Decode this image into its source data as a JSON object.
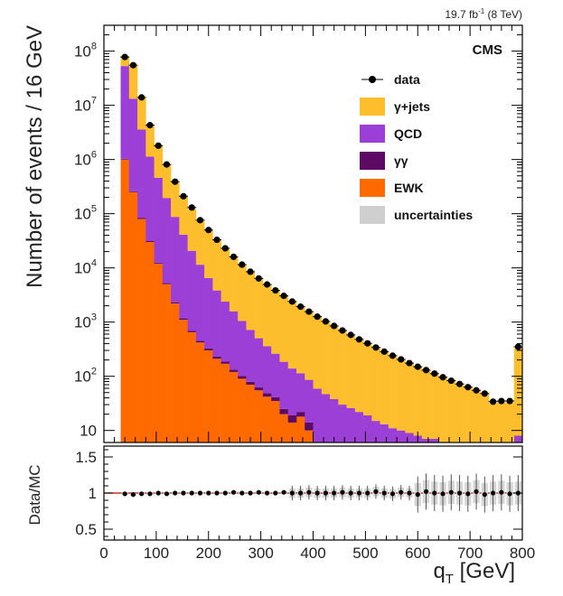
{
  "chart_data": {
    "type": "histogram-stacked",
    "lumi_label": "19.7 fb",
    "lumi_sup": "-1",
    "lumi_energy": "(8 TeV)",
    "experiment_label": "CMS",
    "ylabel": "Number of events / 16 GeV",
    "xlabel_main": "q",
    "xlabel_sub": "T",
    "xlabel_unit": " [GeV]",
    "ratio_ylabel": "Data/MC",
    "xlim": [
      0,
      800
    ],
    "bin_width": 16,
    "ylim_log": [
      6,
      300000000
    ],
    "ratio_ylim": [
      0.35,
      1.65
    ],
    "x_ticks": [
      "0",
      "100",
      "200",
      "300",
      "400",
      "500",
      "600",
      "700",
      "800"
    ],
    "y_ticks": [
      {
        "value": 10,
        "base": "10",
        "exp": ""
      },
      {
        "value": 100,
        "base": "10",
        "exp": "2"
      },
      {
        "value": 1000,
        "base": "10",
        "exp": "3"
      },
      {
        "value": 10000,
        "base": "10",
        "exp": "4"
      },
      {
        "value": 100000,
        "base": "10",
        "exp": "5"
      },
      {
        "value": 1000000,
        "base": "10",
        "exp": "6"
      },
      {
        "value": 10000000,
        "base": "10",
        "exp": "7"
      },
      {
        "value": 100000000,
        "base": "10",
        "exp": "8"
      }
    ],
    "ratio_ticks": [
      {
        "value": 0.5,
        "label": "0.5"
      },
      {
        "value": 1.0,
        "label": "1"
      },
      {
        "value": 1.5,
        "label": "1.5"
      }
    ],
    "legend": [
      {
        "key": "data",
        "label": "data",
        "type": "marker",
        "color": "#000000"
      },
      {
        "key": "gjets",
        "label": "γ+jets",
        "type": "fill",
        "color": "#fdbe2e"
      },
      {
        "key": "qcd",
        "label": "QCD",
        "type": "fill",
        "color": "#9b3fd6"
      },
      {
        "key": "gg",
        "label": "γγ",
        "type": "fill",
        "color": "#5c0a63"
      },
      {
        "key": "ewk",
        "label": "EWK",
        "type": "fill",
        "color": "#ff6a00"
      },
      {
        "key": "unc",
        "label": "uncertainties",
        "type": "fill",
        "color": "#cfcfcf"
      }
    ],
    "bins_low_edges": [
      32,
      48,
      64,
      80,
      96,
      112,
      128,
      144,
      160,
      176,
      192,
      208,
      224,
      240,
      256,
      272,
      288,
      304,
      320,
      336,
      352,
      368,
      384,
      400,
      416,
      432,
      448,
      464,
      480,
      496,
      512,
      528,
      544,
      560,
      576,
      592,
      608,
      624,
      640,
      656,
      672,
      688,
      704,
      720,
      736,
      752,
      768,
      784
    ],
    "series": [
      {
        "name": "EWK",
        "key": "ewk",
        "color": "#ff6a00",
        "values": [
          1000000.0,
          250000.0,
          80000.0,
          30000.0,
          12000.0,
          5000,
          2200,
          1100,
          650,
          420,
          300,
          210,
          170,
          120,
          90,
          70,
          55,
          42,
          35,
          20,
          14,
          18,
          10,
          0,
          0,
          0,
          0,
          0,
          0,
          0,
          0,
          0,
          0,
          0,
          0,
          0,
          0,
          0,
          0,
          0,
          0,
          0,
          0,
          0,
          0,
          0,
          0,
          0
        ]
      },
      {
        "name": "γγ",
        "key": "gg",
        "color": "#5c0a63",
        "values": [
          30000.0,
          9000,
          3000,
          1200,
          500,
          230,
          120,
          70,
          45,
          33,
          25,
          20,
          16,
          13,
          11,
          9,
          8,
          7,
          6,
          5,
          5,
          4,
          4,
          3,
          3,
          3,
          2,
          2,
          2,
          2,
          1,
          1,
          1,
          1,
          1,
          1,
          1,
          1,
          1,
          1,
          0,
          0,
          0,
          0,
          0,
          0,
          0,
          0
        ]
      },
      {
        "name": "QCD",
        "key": "qcd",
        "color": "#9b3fd6",
        "values": [
          52000000.0,
          13000000.0,
          3500000.0,
          1100000.0,
          450000.0,
          190000.0,
          85000.0,
          40000.0,
          20000.0,
          11000.0,
          6200,
          3600,
          2200,
          1450,
          950,
          640,
          440,
          310,
          220,
          160,
          120,
          92,
          72,
          56,
          44,
          35,
          28,
          24,
          20,
          17,
          14,
          12,
          10,
          9,
          8,
          7,
          6,
          6,
          5,
          5,
          4,
          4,
          3,
          3,
          0,
          0,
          0,
          8
        ]
      },
      {
        "name": "γ+jets",
        "key": "gjets",
        "color": "#fdbe2e",
        "values": [
          25000000.0,
          40000000.0,
          10000000.0,
          3200000.0,
          1350000.0,
          620000.0,
          300000.0,
          170000.0,
          100000.0,
          64000.0,
          42000.0,
          29000.0,
          20000.0,
          14500.0,
          10500.0,
          7800,
          5900,
          4600,
          3600,
          2850,
          2250,
          1800,
          1450,
          1190,
          970,
          800,
          660,
          550,
          460,
          390,
          325,
          275,
          232,
          198,
          170,
          146,
          126,
          108,
          93,
          81,
          70,
          61,
          53,
          46,
          32,
          33,
          33,
          320
        ]
      }
    ],
    "data": [
      78000000.0,
      55000000.0,
      14000000.0,
      4300000.0,
      1800000.0,
      810000.0,
      390000.0,
      210000.0,
      130000.0,
      76000.0,
      50000.0,
      33000.0,
      23000.0,
      16000.0,
      11500.0,
      8500,
      6400,
      4950,
      3850,
      3050,
      2400,
      1930,
      1560,
      1260,
      1030,
      850,
      700,
      580,
      480,
      405,
      340,
      285,
      240,
      205,
      175,
      150,
      130,
      112,
      96,
      83,
      72,
      63,
      55,
      48,
      34,
      35,
      35,
      350
    ],
    "ratio": [
      0.99,
      0.98,
      0.99,
      0.99,
      1.0,
      0.99,
      1.0,
      1.0,
      1.0,
      1.0,
      1.0,
      1.0,
      1.0,
      1.01,
      1.0,
      1.0,
      1.01,
      1.0,
      1.0,
      1.01,
      1.0,
      1.0,
      1.01,
      1.0,
      1.0,
      1.0,
      1.01,
      1.0,
      1.0,
      1.0,
      1.02,
      1.0,
      0.99,
      1.01,
      1.0,
      0.98,
      1.02,
      1.0,
      0.99,
      1.01,
      1.0,
      0.99,
      1.02,
      0.98,
      1.0,
      1.01,
      0.99,
      1.0
    ]
  }
}
